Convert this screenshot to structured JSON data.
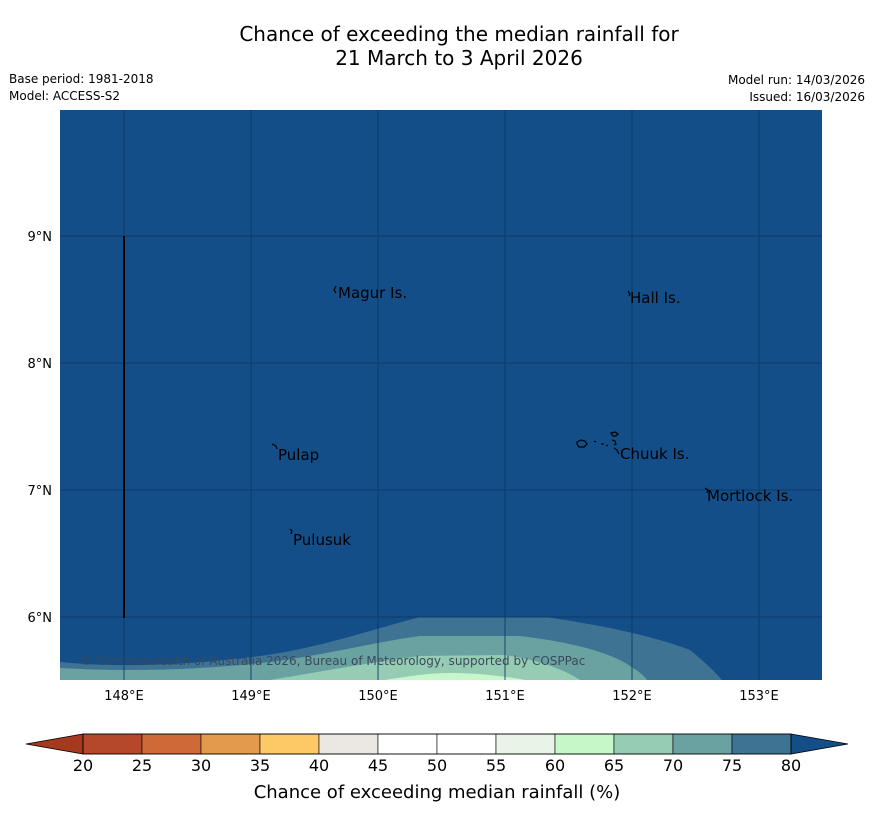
{
  "title_line1": "Chance of exceeding the median rainfall for",
  "title_line2": "21 March to 3 April 2026",
  "base_period": "Base period: 1981-2018",
  "model": "Model: ACCESS-S2",
  "model_run": "Model run: 14/03/2026",
  "issued": "Issued: 16/03/2026",
  "places": {
    "magur": "Magur Is.",
    "hall": "Hall Is.",
    "pulap": "Pulap",
    "chuuk": "Chuuk Is.",
    "mortlock": "Mortlock Is.",
    "pulusuk": "Pulusuk"
  },
  "lat_labels": [
    "9°N",
    "8°N",
    "7°N",
    "6°N"
  ],
  "lon_labels": [
    "148°E",
    "149°E",
    "150°E",
    "151°E",
    "152°E",
    "153°E"
  ],
  "copyright": "© Commonwealth of Australia 2026, Bureau of Meteorology, supported by COSPPac",
  "colorbar": {
    "title": "Chance of exceeding median rainfall (%)",
    "ticks": [
      "20",
      "25",
      "30",
      "35",
      "40",
      "45",
      "50",
      "55",
      "60",
      "65",
      "70",
      "75",
      "80"
    ],
    "colors": [
      "#b5472a",
      "#cf6a38",
      "#e39a4c",
      "#fcc966",
      "#ebe8e4",
      "#ffffff",
      "#ffffff",
      "#e8f4e8",
      "#c6f7c8",
      "#97ccb4",
      "#6aa2a2",
      "#3e7394"
    ],
    "under_color": "#a4391f",
    "over_color": "#134e88"
  },
  "map_colors": {
    "ocean": "#134e88",
    "band_75_80": "#3e7394",
    "band_70_75": "#6aa2a2",
    "band_65_70": "#97ccb4",
    "band_60_65": "#c6f7c8"
  }
}
